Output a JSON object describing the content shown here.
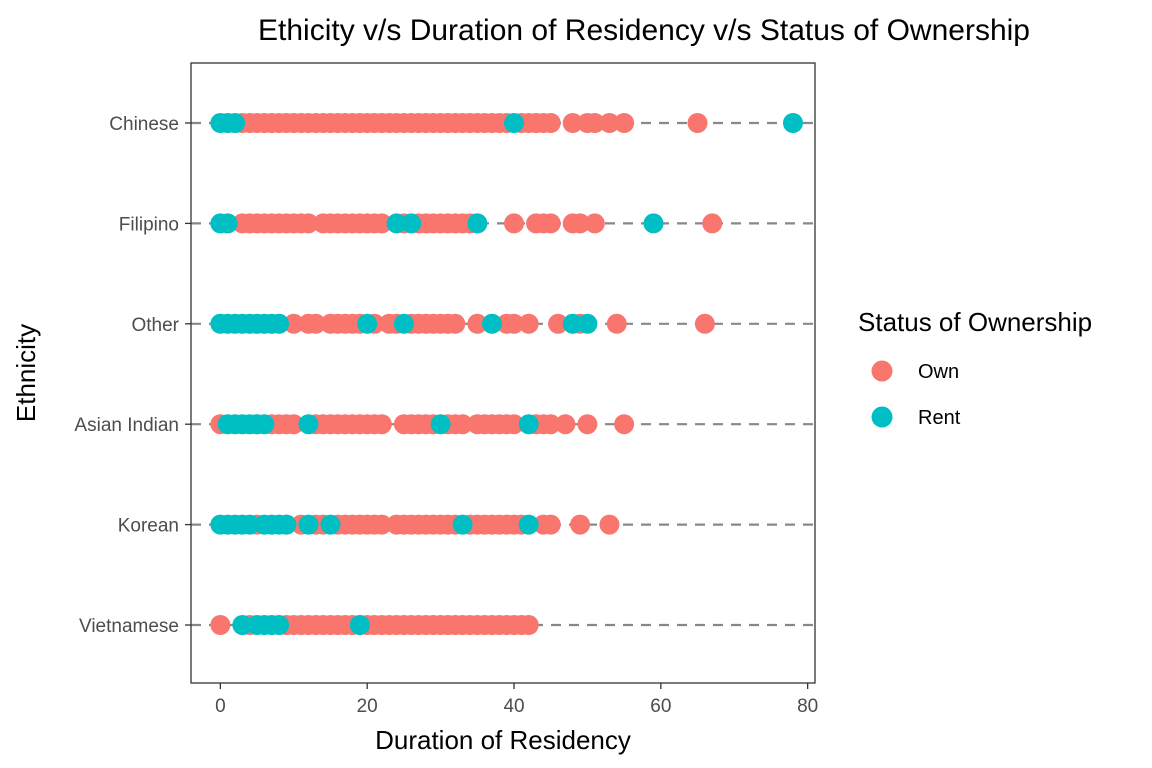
{
  "chart_data": {
    "type": "scatter",
    "title": "Ethicity v/s Duration of Residency v/s Status of Ownership",
    "xlabel": "Duration of Residency",
    "ylabel": "Ethnicity",
    "xlim": [
      -4,
      81
    ],
    "xticks": [
      0,
      20,
      40,
      60,
      80
    ],
    "categories": [
      "Chinese",
      "Filipino",
      "Other",
      "Asian Indian",
      "Korean",
      "Vietnamese"
    ],
    "grid": false,
    "reference_lines": "dashed grey horizontal line at each category",
    "legend": {
      "title": "Status of Ownership",
      "position": "right",
      "entries": [
        {
          "label": "Own",
          "color": "#F8766D"
        },
        {
          "label": "Rent",
          "color": "#00BFC4"
        }
      ]
    },
    "series": [
      {
        "name": "Own",
        "color": "#F8766D",
        "points": {
          "Chinese": [
            3,
            4,
            5,
            6,
            7,
            8,
            9,
            10,
            11,
            12,
            13,
            14,
            15,
            16,
            17,
            18,
            19,
            20,
            21,
            22,
            23,
            24,
            25,
            26,
            27,
            28,
            29,
            30,
            31,
            32,
            33,
            34,
            35,
            36,
            37,
            38,
            39,
            41,
            42,
            43,
            44,
            45,
            48,
            50,
            51,
            53,
            55,
            65
          ],
          "Filipino": [
            3,
            4,
            5,
            6,
            7,
            8,
            9,
            10,
            11,
            12,
            14,
            15,
            16,
            17,
            18,
            19,
            20,
            21,
            22,
            25,
            27,
            28,
            29,
            30,
            31,
            32,
            33,
            34,
            35,
            40,
            43,
            44,
            45,
            48,
            49,
            51,
            67
          ],
          "Other": [
            10,
            12,
            13,
            15,
            16,
            17,
            18,
            19,
            21,
            23,
            24,
            26,
            27,
            28,
            29,
            30,
            31,
            32,
            35,
            39,
            40,
            42,
            46,
            49,
            54,
            66
          ],
          "Asian Indian": [
            0,
            5,
            7,
            8,
            9,
            10,
            13,
            14,
            15,
            16,
            17,
            18,
            19,
            20,
            21,
            22,
            25,
            26,
            27,
            28,
            29,
            31,
            32,
            33,
            35,
            36,
            37,
            38,
            39,
            40,
            43,
            44,
            45,
            47,
            50,
            55
          ],
          "Korean": [
            5,
            9,
            11,
            13,
            14,
            16,
            17,
            18,
            19,
            20,
            21,
            22,
            24,
            25,
            26,
            27,
            28,
            29,
            30,
            31,
            32,
            34,
            35,
            36,
            37,
            38,
            39,
            40,
            41,
            44,
            45,
            49,
            53
          ],
          "Vietnamese": [
            0,
            4,
            9,
            10,
            11,
            12,
            13,
            14,
            15,
            16,
            17,
            18,
            19,
            20,
            21,
            22,
            23,
            24,
            25,
            26,
            27,
            28,
            29,
            30,
            31,
            32,
            33,
            34,
            35,
            36,
            37,
            38,
            39,
            40,
            41,
            42
          ]
        }
      },
      {
        "name": "Rent",
        "color": "#00BFC4",
        "points": {
          "Chinese": [
            0,
            1,
            2,
            40,
            78
          ],
          "Filipino": [
            0,
            1,
            24,
            26,
            35,
            59
          ],
          "Other": [
            0,
            1,
            2,
            3,
            4,
            5,
            6,
            7,
            8,
            20,
            25,
            37,
            48,
            50
          ],
          "Asian Indian": [
            1,
            2,
            3,
            4,
            5,
            6,
            12,
            30,
            42
          ],
          "Korean": [
            0,
            1,
            2,
            3,
            4,
            6,
            7,
            8,
            9,
            12,
            15,
            33,
            42
          ],
          "Vietnamese": [
            3,
            5,
            6,
            7,
            8,
            19
          ]
        }
      }
    ]
  }
}
